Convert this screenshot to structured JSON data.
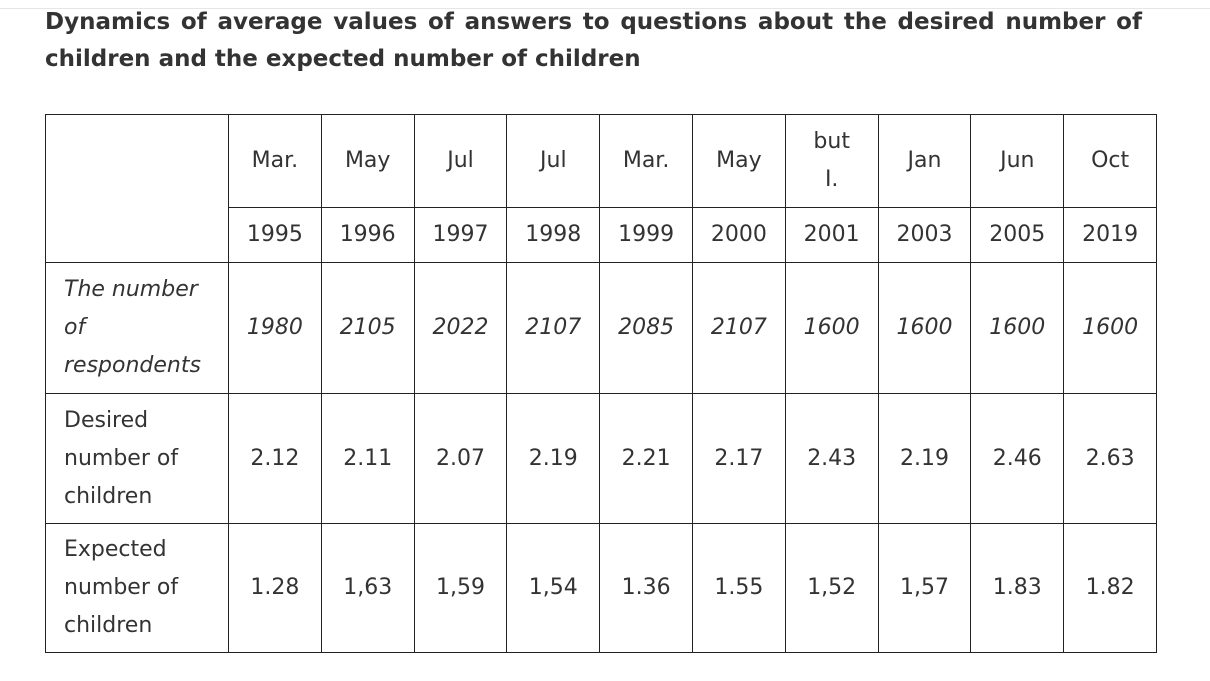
{
  "title": "Dynamics of average values of answers to questions about the desired number of children and the expected number of children",
  "table": {
    "months": [
      "Mar.",
      "May",
      "Jul",
      "Jul",
      "Mar.",
      "May",
      "but\nI.",
      "Jan",
      "Jun",
      "Oct"
    ],
    "years": [
      "1995",
      "1996",
      "1997",
      "1998",
      "1999",
      "2000",
      "2001",
      "2003",
      "2005",
      "2019"
    ],
    "rows": [
      {
        "label": "The number of respondents",
        "cells": [
          "1980",
          "2105",
          "2022",
          "2107",
          "2085",
          "2107",
          "1600",
          "1600",
          "1600",
          "1600"
        ]
      },
      {
        "label": "Desired number of children",
        "cells": [
          "2.12",
          "2.11",
          "2.07",
          "2.19",
          "2.21",
          "2.17",
          "2.43",
          "2.19",
          "2.46",
          "2.63"
        ]
      },
      {
        "label": "Expected number of children",
        "cells": [
          "1.28",
          "1,63",
          "1,59",
          "1,54",
          "1.36",
          "1.55",
          "1,52",
          "1,57",
          "1.83",
          "1.82"
        ]
      }
    ]
  }
}
